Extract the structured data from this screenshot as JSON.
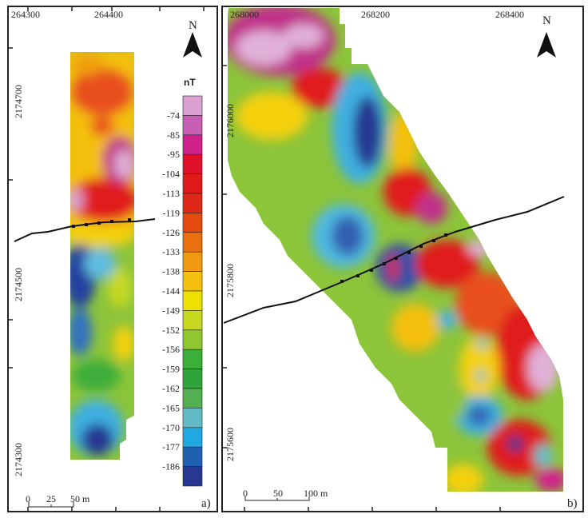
{
  "panel_a": {
    "label": "a)",
    "x_ticks": [
      "264300",
      "264400"
    ],
    "y_ticks": [
      "2174700",
      "2174500",
      "2174300"
    ],
    "north": "N",
    "scale": [
      "0",
      "25",
      "50 m"
    ]
  },
  "panel_b": {
    "label": "b)",
    "x_ticks": [
      "268000",
      "268200",
      "268400"
    ],
    "y_ticks": [
      "2176000",
      "2175800",
      "2175600"
    ],
    "north": "N",
    "scale": [
      "0",
      "50",
      "100 m"
    ]
  },
  "legend": {
    "unit": "nT",
    "labels": [
      "-74",
      "-85",
      "-95",
      "-104",
      "-113",
      "-119",
      "-126",
      "-133",
      "-138",
      "-144",
      "-149",
      "-152",
      "-156",
      "-159",
      "-162",
      "-165",
      "-170",
      "-177",
      "-186"
    ],
    "colors": [
      "#d9a0d0",
      "#c85fb4",
      "#d0208a",
      "#e0102a",
      "#e01a1a",
      "#e02818",
      "#e44a10",
      "#ea7010",
      "#f09a10",
      "#f4c010",
      "#eee000",
      "#c6d820",
      "#90c630",
      "#3cae3a",
      "#30a43a",
      "#52b050",
      "#62bcc8",
      "#20a8e0",
      "#2060b0",
      "#283890"
    ]
  }
}
